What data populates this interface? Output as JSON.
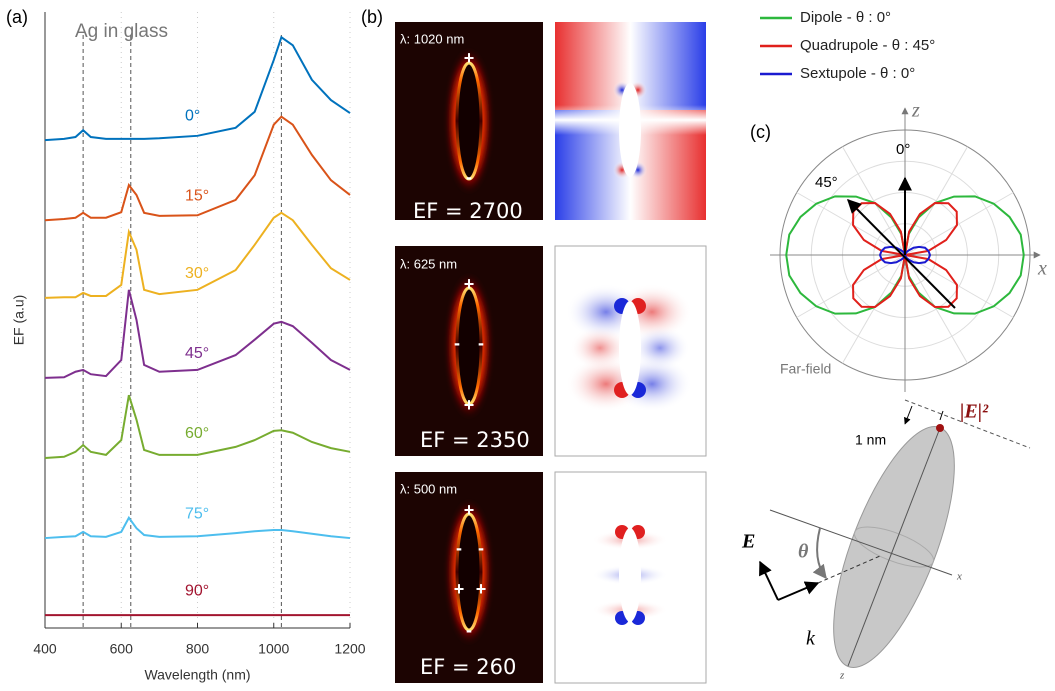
{
  "panels": {
    "a": "(a)",
    "b": "(b)",
    "c": "(c)"
  },
  "chart_data": [
    {
      "type": "line",
      "title": "Ag in glass",
      "xlabel": "Wavelength (nm)",
      "ylabel": "EF (a.u)",
      "x": [
        400,
        450,
        480,
        500,
        520,
        560,
        600,
        620,
        640,
        660,
        700,
        800,
        900,
        950,
        1000,
        1020,
        1050,
        1100,
        1150,
        1200
      ],
      "xlim": [
        400,
        1200
      ],
      "xticks": [
        400,
        600,
        800,
        1000,
        1200
      ],
      "ylim": [
        0,
        100
      ],
      "grid": true,
      "vlines": [
        500,
        625,
        1020
      ],
      "series": [
        {
          "name": "0°",
          "color": "#0072bd",
          "values": [
            79.2,
            79.4,
            79.7,
            80.8,
            79.7,
            79.4,
            79.4,
            79.4,
            79.4,
            79.4,
            79.5,
            79.9,
            81.2,
            83.8,
            92.2,
            95.9,
            94.6,
            89.0,
            85.7,
            83.6
          ]
        },
        {
          "name": "15°",
          "color": "#d95319",
          "values": [
            66.2,
            66.4,
            66.6,
            67.4,
            66.6,
            66.6,
            67.5,
            71.9,
            70.3,
            67.4,
            66.9,
            67.0,
            69.5,
            73.5,
            81.7,
            83.0,
            81.7,
            76.8,
            72.7,
            70.3
          ]
        },
        {
          "name": "30°",
          "color": "#edb120",
          "values": [
            53.6,
            53.7,
            53.7,
            54.4,
            53.9,
            53.9,
            55.7,
            64.3,
            61.4,
            54.9,
            54.2,
            54.9,
            58.1,
            62.2,
            66.6,
            67.4,
            66.2,
            62.2,
            58.4,
            56.5
          ]
        },
        {
          "name": "45°",
          "color": "#7e2f8e",
          "values": [
            40.6,
            40.7,
            41.6,
            41.9,
            41.2,
            40.9,
            43.5,
            54.9,
            50.0,
            42.7,
            41.6,
            41.9,
            44.3,
            46.8,
            49.4,
            49.7,
            49.0,
            46.3,
            43.5,
            41.9
          ]
        },
        {
          "name": "60°",
          "color": "#77ac30",
          "values": [
            27.6,
            27.8,
            28.6,
            29.7,
            28.6,
            28.1,
            30.5,
            37.8,
            33.8,
            28.9,
            28.1,
            28.1,
            29.4,
            30.5,
            32.0,
            32.1,
            31.7,
            30.2,
            29.2,
            28.6
          ]
        },
        {
          "name": "75°",
          "color": "#4dbeee",
          "values": [
            14.6,
            14.8,
            14.9,
            15.6,
            14.9,
            14.8,
            15.6,
            17.9,
            16.2,
            15.1,
            14.8,
            14.9,
            15.4,
            15.7,
            15.9,
            15.9,
            15.7,
            15.3,
            14.9,
            14.6
          ]
        },
        {
          "name": "90°",
          "color": "#a2142f",
          "values": [
            2.1,
            2.1,
            2.1,
            2.1,
            2.1,
            2.1,
            2.1,
            2.1,
            2.1,
            2.1,
            2.1,
            2.1,
            2.1,
            2.1,
            2.1,
            2.1,
            2.1,
            2.1,
            2.1,
            2.1
          ]
        }
      ]
    },
    {
      "type": "polar",
      "legend": "top",
      "note": "Far-field",
      "axis_labels": [
        "z",
        "x"
      ],
      "annotations": [
        "0°",
        "45°"
      ],
      "rlim": [
        0,
        1
      ],
      "rticks": [
        0.25,
        0.5,
        0.75,
        1
      ],
      "thetaticks": [
        0,
        30,
        60,
        90,
        120,
        150,
        180,
        210,
        240,
        270,
        300,
        330
      ],
      "theta": [
        0,
        10,
        20,
        30,
        40,
        50,
        60,
        70,
        80,
        90,
        100,
        110,
        120,
        130,
        140,
        150,
        160,
        170,
        180,
        190,
        200,
        210,
        220,
        230,
        240,
        250,
        260,
        270,
        280,
        290,
        300,
        310,
        320,
        330,
        340,
        350,
        360
      ],
      "series": [
        {
          "name": "Dipole - θ : 0°",
          "color": "#2db83d",
          "values": [
            0,
            0.17,
            0.32,
            0.48,
            0.61,
            0.73,
            0.82,
            0.89,
            0.94,
            0.95,
            0.94,
            0.89,
            0.82,
            0.73,
            0.61,
            0.48,
            0.32,
            0.17,
            0,
            0.17,
            0.32,
            0.48,
            0.61,
            0.73,
            0.82,
            0.89,
            0.94,
            0.95,
            0.94,
            0.89,
            0.82,
            0.73,
            0.61,
            0.48,
            0.32,
            0.17,
            0
          ]
        },
        {
          "name": "Quadrupole - θ : 45°",
          "color": "#e0201b",
          "values": [
            0,
            0.19,
            0.35,
            0.48,
            0.54,
            0.54,
            0.48,
            0.35,
            0.19,
            0,
            0.19,
            0.35,
            0.48,
            0.54,
            0.54,
            0.48,
            0.35,
            0.19,
            0,
            0.19,
            0.35,
            0.48,
            0.54,
            0.54,
            0.48,
            0.35,
            0.19,
            0,
            0.19,
            0.35,
            0.48,
            0.54,
            0.54,
            0.48,
            0.35,
            0.19,
            0
          ]
        },
        {
          "name": "Sextupole - θ : 0°",
          "color": "#1a1ad0",
          "values": [
            0,
            0,
            0.01,
            0.03,
            0.05,
            0.09,
            0.13,
            0.17,
            0.19,
            0.2,
            0.19,
            0.17,
            0.13,
            0.09,
            0.05,
            0.03,
            0.01,
            0,
            0,
            0,
            0.01,
            0.03,
            0.05,
            0.09,
            0.13,
            0.17,
            0.19,
            0.2,
            0.19,
            0.17,
            0.13,
            0.09,
            0.05,
            0.03,
            0.01,
            0,
            0
          ]
        }
      ]
    }
  ],
  "field_maps": [
    {
      "wavelength": "λ: 1020 nm",
      "ef": "EF = 2700",
      "signs": [
        "+",
        "-"
      ]
    },
    {
      "wavelength": "λ: 625 nm",
      "ef": "EF = 2350",
      "signs": [
        "+",
        "-",
        "-",
        "+"
      ]
    },
    {
      "wavelength": "λ: 500 nm",
      "ef": "EF = 260",
      "signs": [
        "+",
        "-",
        "-",
        "+",
        "+",
        "-"
      ]
    }
  ],
  "diagram": {
    "intensity": "|E|²",
    "distance": "1 nm",
    "field": "E",
    "angle": "θ",
    "wavevector": "k",
    "x_axis": "x",
    "z_axis": "z"
  }
}
